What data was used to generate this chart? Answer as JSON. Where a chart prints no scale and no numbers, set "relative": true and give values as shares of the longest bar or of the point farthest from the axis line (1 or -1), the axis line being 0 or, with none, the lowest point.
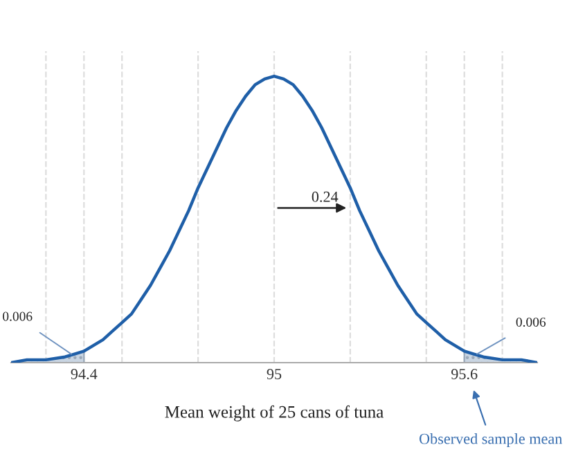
{
  "chart_data": {
    "type": "line",
    "relative": true,
    "xlabel": "Mean weight of 25 cans of tuna",
    "xlim": [
      94.17,
      95.83
    ],
    "xticks": [
      {
        "value": 94.28,
        "label": null
      },
      94.4,
      {
        "value": 94.52,
        "label": null
      },
      {
        "value": 94.76,
        "label": null
      },
      95,
      {
        "value": 95.24,
        "label": null
      },
      {
        "value": 95.48,
        "label": null
      },
      95.6,
      {
        "value": 95.72,
        "label": null
      }
    ],
    "grid": "x",
    "tick_labels": "x",
    "line_style": "solid",
    "marker": "none",
    "series": [
      {
        "type": "area",
        "color": "#c9d5e2",
        "x": [
          94.17,
          94.22,
          94.28,
          94.34,
          94.4
        ],
        "values": [
          0.0,
          0.01,
          0.01,
          0.02,
          0.04
        ]
      },
      {
        "type": "area",
        "color": "#c9d5e2",
        "x": [
          95.6,
          95.66,
          95.72,
          95.78,
          95.83
        ],
        "values": [
          0.04,
          0.02,
          0.01,
          0.01,
          0.0
        ]
      },
      {
        "color": "#1f5fa8",
        "x": [
          94.17,
          94.22,
          94.28,
          94.34,
          94.37,
          94.4,
          94.43,
          94.46,
          94.49,
          94.52,
          94.55,
          94.58,
          94.61,
          94.64,
          94.67,
          94.7,
          94.73,
          94.76,
          94.79,
          94.82,
          94.85,
          94.88,
          94.91,
          94.94,
          94.97,
          95.0,
          95.03,
          95.06,
          95.09,
          95.12,
          95.15,
          95.18,
          95.21,
          95.24,
          95.27,
          95.3,
          95.33,
          95.36,
          95.39,
          95.42,
          95.45,
          95.48,
          95.51,
          95.54,
          95.57,
          95.6,
          95.63,
          95.66,
          95.72,
          95.78,
          95.83
        ],
        "values": [
          0.0,
          0.01,
          0.01,
          0.02,
          0.03,
          0.04,
          0.06,
          0.08,
          0.11,
          0.14,
          0.17,
          0.22,
          0.27,
          0.33,
          0.39,
          0.46,
          0.53,
          0.61,
          0.68,
          0.75,
          0.82,
          0.88,
          0.93,
          0.97,
          0.99,
          1.0,
          0.99,
          0.97,
          0.93,
          0.88,
          0.82,
          0.75,
          0.68,
          0.61,
          0.53,
          0.46,
          0.39,
          0.33,
          0.27,
          0.22,
          0.17,
          0.14,
          0.11,
          0.08,
          0.06,
          0.04,
          0.03,
          0.02,
          0.01,
          0.01,
          0.0
        ]
      }
    ],
    "annotations": [
      {
        "text": "0.006",
        "x": 94.36,
        "y": 0.03
      },
      {
        "text": "0.006",
        "x": 95.64,
        "y": 0.03
      },
      {
        "text": "0.24",
        "x": 95.24,
        "y": 0.54
      },
      "Observed sample mean"
    ]
  }
}
